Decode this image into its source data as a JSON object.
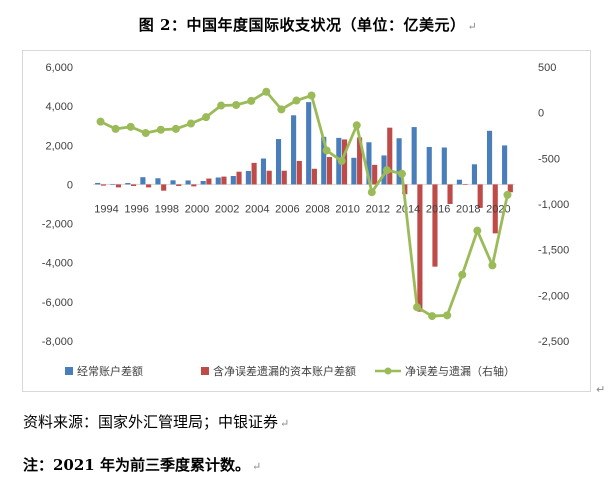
{
  "page": {
    "title": "图 2：中国年度国际收支状况（单位：亿美元）",
    "source": "资料来源：国家外汇管理局；中银证券",
    "note": "注：2021 年为前三季度累计数。",
    "return_mark": "↵"
  },
  "chart_data": {
    "type": "bar",
    "title": "图 2：中国年度国际收支状况（单位：亿美元）",
    "x": [
      1994,
      1995,
      1996,
      1997,
      1998,
      1999,
      2000,
      2001,
      2002,
      2003,
      2004,
      2005,
      2006,
      2007,
      2008,
      2009,
      2010,
      2011,
      2012,
      2013,
      2014,
      2015,
      2016,
      2017,
      2018,
      2019,
      2020,
      2021
    ],
    "x_tick_labels": [
      "1994",
      "1996",
      "1998",
      "2000",
      "2002",
      "2004",
      "2006",
      "2008",
      "2010",
      "2012",
      "2014",
      "2016",
      "2018",
      "2020"
    ],
    "y_left": {
      "min": -8000,
      "max": 6000,
      "ticks": [
        "6,000",
        "4,000",
        "2,000",
        "0",
        "-2,000",
        "-4,000",
        "-6,000",
        "-8,000"
      ]
    },
    "y_right": {
      "min": -2500,
      "max": 500,
      "ticks": [
        "500",
        "0",
        "-500",
        "-1,000",
        "-1,500",
        "-2,000",
        "-2,500"
      ]
    },
    "series": [
      {
        "name": "经常账户差额",
        "kind": "bar",
        "axis": "left",
        "color": "#4a7ebb",
        "values": [
          77,
          16,
          72,
          370,
          315,
          211,
          204,
          174,
          354,
          431,
          689,
          1324,
          2318,
          3532,
          4206,
          2433,
          2378,
          1361,
          2154,
          1482,
          2360,
          2930,
          1913,
          1887,
          241,
          1029,
          2740,
          1993
        ]
      },
      {
        "name": "含净误差遗漏的资本账户差额",
        "kind": "bar",
        "axis": "left",
        "color": "#be4b48",
        "values": [
          -60,
          -150,
          -80,
          -150,
          -320,
          -80,
          -100,
          300,
          400,
          650,
          1100,
          700,
          700,
          1200,
          800,
          1400,
          2300,
          2400,
          1000,
          2900,
          -500,
          -6500,
          -4200,
          -1000,
          0,
          -1200,
          -2500,
          -400
        ]
      },
      {
        "name": "净误差与遗漏（右轴）",
        "kind": "line",
        "axis": "right",
        "color": "#9bbb59",
        "values": [
          -98,
          -178,
          -155,
          -223,
          -187,
          -178,
          -119,
          -49,
          78,
          84,
          129,
          229,
          36,
          133,
          188,
          -414,
          -529,
          -138,
          -871,
          -629,
          -669,
          -2130,
          -2227,
          -2219,
          -1774,
          -1292,
          -1672,
          -900
        ]
      }
    ],
    "legend": {
      "position": "bottom"
    }
  }
}
